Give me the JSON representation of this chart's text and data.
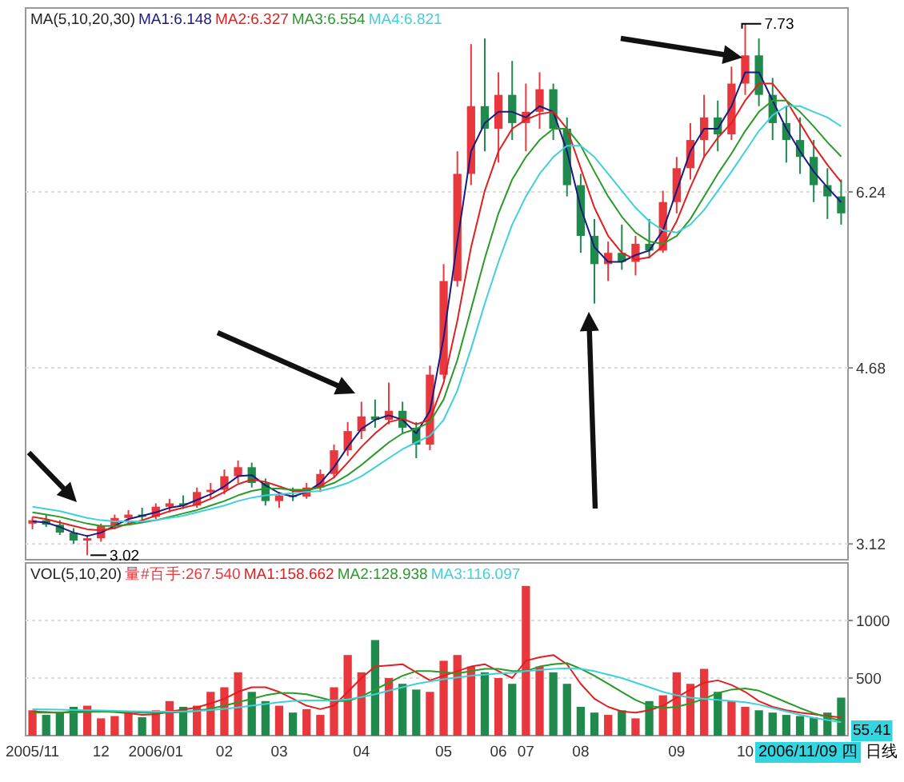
{
  "chart_data": [
    {
      "type": "candlestick",
      "legend_title": "MA(5,10,20,30)",
      "legend": "top left",
      "grid": "y",
      "tick_labels": "y",
      "ylim": [
        2.98,
        7.87
      ],
      "yticks": [
        3.12,
        4.68,
        6.24
      ],
      "categories": [
        null,
        null,
        null,
        null,
        null,
        null,
        null,
        null,
        null,
        null,
        null,
        null,
        null,
        null,
        null,
        null,
        null,
        null,
        null,
        null,
        null,
        null,
        null,
        null,
        null,
        null,
        null,
        null,
        null,
        null,
        null,
        null,
        null,
        null,
        null,
        null,
        null,
        null,
        null,
        null,
        null,
        null,
        null,
        null,
        null,
        null,
        null,
        null,
        null,
        null,
        null,
        null,
        null,
        null,
        null,
        null,
        null,
        null,
        null,
        null
      ],
      "ohlc": [
        [
          3.3,
          3.36,
          3.25,
          3.33
        ],
        [
          3.33,
          3.38,
          3.27,
          3.29
        ],
        [
          3.29,
          3.33,
          3.2,
          3.22
        ],
        [
          3.22,
          3.26,
          3.12,
          3.15
        ],
        [
          3.15,
          3.2,
          3.02,
          3.17
        ],
        [
          3.17,
          3.3,
          3.14,
          3.28
        ],
        [
          3.28,
          3.38,
          3.25,
          3.35
        ],
        [
          3.35,
          3.42,
          3.3,
          3.38
        ],
        [
          3.38,
          3.44,
          3.33,
          3.36
        ],
        [
          3.36,
          3.48,
          3.34,
          3.45
        ],
        [
          3.45,
          3.52,
          3.4,
          3.48
        ],
        [
          3.48,
          3.55,
          3.43,
          3.46
        ],
        [
          3.46,
          3.62,
          3.44,
          3.58
        ],
        [
          3.58,
          3.66,
          3.52,
          3.6
        ],
        [
          3.6,
          3.78,
          3.56,
          3.72
        ],
        [
          3.72,
          3.86,
          3.66,
          3.8
        ],
        [
          3.8,
          3.84,
          3.62,
          3.66
        ],
        [
          3.66,
          3.7,
          3.46,
          3.5
        ],
        [
          3.5,
          3.58,
          3.44,
          3.55
        ],
        [
          3.55,
          3.62,
          3.5,
          3.54
        ],
        [
          3.54,
          3.66,
          3.52,
          3.62
        ],
        [
          3.62,
          3.78,
          3.58,
          3.74
        ],
        [
          3.74,
          4.0,
          3.7,
          3.95
        ],
        [
          3.95,
          4.2,
          3.9,
          4.12
        ],
        [
          4.12,
          4.38,
          4.05,
          4.25
        ],
        [
          4.25,
          4.4,
          4.15,
          4.22
        ],
        [
          4.22,
          4.55,
          4.18,
          4.3
        ],
        [
          4.3,
          4.38,
          4.1,
          4.15
        ],
        [
          4.15,
          4.2,
          3.88,
          4.0
        ],
        [
          4.0,
          4.7,
          3.95,
          4.62
        ],
        [
          4.62,
          5.6,
          4.58,
          5.45
        ],
        [
          5.45,
          6.6,
          5.4,
          6.4
        ],
        [
          6.4,
          7.55,
          6.3,
          7.0
        ],
        [
          7.0,
          7.6,
          6.6,
          6.8
        ],
        [
          6.8,
          7.3,
          6.5,
          7.1
        ],
        [
          7.1,
          7.4,
          6.7,
          6.85
        ],
        [
          6.85,
          7.2,
          6.6,
          6.95
        ],
        [
          6.95,
          7.3,
          6.8,
          7.15
        ],
        [
          7.15,
          7.2,
          6.7,
          6.8
        ],
        [
          6.8,
          6.9,
          6.2,
          6.3
        ],
        [
          6.3,
          6.4,
          5.7,
          5.85
        ],
        [
          5.85,
          6.0,
          5.25,
          5.6
        ],
        [
          5.6,
          5.8,
          5.45,
          5.7
        ],
        [
          5.7,
          5.95,
          5.55,
          5.62
        ],
        [
          5.62,
          5.85,
          5.5,
          5.78
        ],
        [
          5.78,
          6.0,
          5.65,
          5.72
        ],
        [
          5.72,
          6.25,
          5.7,
          6.15
        ],
        [
          6.15,
          6.55,
          6.05,
          6.45
        ],
        [
          6.45,
          6.85,
          6.35,
          6.7
        ],
        [
          6.7,
          7.1,
          6.55,
          6.9
        ],
        [
          6.9,
          7.05,
          6.6,
          6.75
        ],
        [
          6.75,
          7.35,
          6.7,
          7.2
        ],
        [
          7.2,
          7.73,
          7.1,
          7.45
        ],
        [
          7.45,
          7.6,
          7.0,
          7.1
        ],
        [
          7.1,
          7.25,
          6.7,
          6.85
        ],
        [
          6.85,
          7.0,
          6.5,
          6.7
        ],
        [
          6.7,
          6.9,
          6.4,
          6.55
        ],
        [
          6.55,
          6.7,
          6.15,
          6.3
        ],
        [
          6.3,
          6.45,
          6.0,
          6.2
        ],
        [
          6.2,
          6.35,
          5.95,
          6.05
        ]
      ],
      "colors": [
        "#e8383d",
        "#1f8a4c",
        "#1f8a4c",
        "#1f8a4c",
        "#e8383d",
        "#e8383d",
        "#e8383d",
        "#e8383d",
        "#1f8a4c",
        "#e8383d",
        "#e8383d",
        "#1f8a4c",
        "#e8383d",
        "#e8383d",
        "#e8383d",
        "#e8383d",
        "#1f8a4c",
        "#1f8a4c",
        "#e8383d",
        "#1f8a4c",
        "#e8383d",
        "#e8383d",
        "#e8383d",
        "#e8383d",
        "#e8383d",
        "#1f8a4c",
        "#e8383d",
        "#1f8a4c",
        "#1f8a4c",
        "#e8383d",
        "#e8383d",
        "#e8383d",
        "#e8383d",
        "#1f8a4c",
        "#e8383d",
        "#1f8a4c",
        "#e8383d",
        "#e8383d",
        "#1f8a4c",
        "#1f8a4c",
        "#1f8a4c",
        "#1f8a4c",
        "#e8383d",
        "#1f8a4c",
        "#e8383d",
        "#1f8a4c",
        "#e8383d",
        "#e8383d",
        "#e8383d",
        "#e8383d",
        "#1f8a4c",
        "#e8383d",
        "#e8383d",
        "#1f8a4c",
        "#1f8a4c",
        "#1f8a4c",
        "#1f8a4c",
        "#1f8a4c",
        "#1f8a4c",
        "#1f8a4c"
      ],
      "series": [
        {
          "type": "line",
          "name": "MA1:6.148",
          "color": "#1a1a80",
          "values": [
            3.32,
            3.31,
            3.27,
            3.22,
            3.19,
            3.22,
            3.28,
            3.34,
            3.37,
            3.4,
            3.44,
            3.46,
            3.51,
            3.56,
            3.63,
            3.72,
            3.73,
            3.64,
            3.57,
            3.54,
            3.58,
            3.66,
            3.8,
            3.98,
            4.14,
            4.22,
            4.26,
            4.22,
            4.1,
            4.3,
            4.95,
            5.8,
            6.6,
            6.85,
            6.95,
            6.95,
            6.9,
            7.0,
            6.95,
            6.6,
            6.1,
            5.75,
            5.62,
            5.62,
            5.68,
            5.72,
            5.9,
            6.25,
            6.6,
            6.8,
            6.8,
            7.0,
            7.3,
            7.3,
            7.05,
            6.8,
            6.6,
            6.42,
            6.28,
            6.148
          ]
        },
        {
          "type": "line",
          "name": "MA2:6.327",
          "color": "#e02020",
          "values": [
            3.36,
            3.34,
            3.31,
            3.28,
            3.25,
            3.24,
            3.26,
            3.3,
            3.33,
            3.37,
            3.41,
            3.44,
            3.47,
            3.52,
            3.58,
            3.65,
            3.69,
            3.67,
            3.63,
            3.59,
            3.59,
            3.63,
            3.71,
            3.84,
            3.98,
            4.1,
            4.2,
            4.23,
            4.18,
            4.22,
            4.55,
            5.1,
            5.75,
            6.25,
            6.6,
            6.8,
            6.88,
            6.93,
            6.95,
            6.8,
            6.45,
            6.1,
            5.85,
            5.7,
            5.64,
            5.66,
            5.76,
            5.98,
            6.28,
            6.55,
            6.72,
            6.85,
            7.05,
            7.2,
            7.2,
            7.05,
            6.85,
            6.65,
            6.48,
            6.327
          ]
        },
        {
          "type": "line",
          "name": "MA3:6.554",
          "color": "#2a9a2a",
          "values": [
            3.4,
            3.38,
            3.36,
            3.33,
            3.3,
            3.28,
            3.28,
            3.29,
            3.31,
            3.33,
            3.36,
            3.39,
            3.42,
            3.46,
            3.5,
            3.55,
            3.59,
            3.61,
            3.61,
            3.6,
            3.6,
            3.62,
            3.66,
            3.73,
            3.82,
            3.92,
            4.02,
            4.1,
            4.14,
            4.2,
            4.4,
            4.75,
            5.2,
            5.65,
            6.05,
            6.35,
            6.55,
            6.7,
            6.8,
            6.8,
            6.65,
            6.42,
            6.2,
            6.02,
            5.88,
            5.8,
            5.78,
            5.85,
            6.0,
            6.2,
            6.4,
            6.58,
            6.78,
            6.95,
            7.05,
            7.05,
            6.95,
            6.82,
            6.68,
            6.554
          ]
        },
        {
          "type": "line",
          "name": "MA4:6.821",
          "color": "#40d0d8",
          "values": [
            3.45,
            3.43,
            3.41,
            3.38,
            3.35,
            3.33,
            3.32,
            3.32,
            3.32,
            3.33,
            3.35,
            3.37,
            3.4,
            3.43,
            3.46,
            3.5,
            3.53,
            3.55,
            3.56,
            3.57,
            3.58,
            3.59,
            3.62,
            3.66,
            3.72,
            3.8,
            3.88,
            3.96,
            4.02,
            4.08,
            4.22,
            4.48,
            4.85,
            5.25,
            5.62,
            5.95,
            6.2,
            6.4,
            6.55,
            6.65,
            6.65,
            6.55,
            6.4,
            6.25,
            6.1,
            5.98,
            5.9,
            5.88,
            5.95,
            6.08,
            6.25,
            6.42,
            6.6,
            6.78,
            6.92,
            7.0,
            7.0,
            6.95,
            6.9,
            6.821
          ]
        }
      ],
      "annotations": [
        "7.73",
        "3.02"
      ]
    },
    {
      "type": "bar",
      "legend_title": "VOL(5,10,20)",
      "legend": "top left",
      "grid": "y",
      "ylim": [
        0,
        1500
      ],
      "yticks": [
        500,
        1000
      ],
      "categories": [
        "2005/11",
        null,
        null,
        null,
        null,
        "12",
        null,
        null,
        null,
        "2006/01",
        null,
        null,
        null,
        null,
        "02",
        null,
        null,
        null,
        "03",
        null,
        null,
        null,
        null,
        null,
        "04",
        null,
        null,
        null,
        null,
        null,
        "05",
        null,
        null,
        null,
        "06",
        null,
        "07",
        null,
        null,
        null,
        "08",
        null,
        null,
        null,
        null,
        null,
        null,
        "09",
        null,
        null,
        null,
        null,
        "10",
        null,
        null,
        null,
        null,
        null,
        null,
        null
      ],
      "series": [
        {
          "name": "量#百手:267.540",
          "color": "#e8383d",
          "values": [
            220,
            180,
            200,
            250,
            260,
            150,
            170,
            200,
            160,
            220,
            300,
            250,
            260,
            380,
            420,
            550,
            380,
            300,
            260,
            200,
            230,
            180,
            420,
            700,
            550,
            830,
            500,
            450,
            400,
            380,
            650,
            700,
            600,
            550,
            500,
            450,
            1300,
            600,
            550,
            450,
            250,
            200,
            180,
            220,
            150,
            300,
            350,
            550,
            450,
            580,
            380,
            300,
            250,
            220,
            200,
            180,
            170,
            160,
            200,
            330
          ],
          "colors": [
            "#e8383d",
            "#1f8a4c",
            "#1f8a4c",
            "#1f8a4c",
            "#e8383d",
            "#e8383d",
            "#e8383d",
            "#e8383d",
            "#1f8a4c",
            "#e8383d",
            "#e8383d",
            "#1f8a4c",
            "#e8383d",
            "#e8383d",
            "#e8383d",
            "#e8383d",
            "#1f8a4c",
            "#1f8a4c",
            "#e8383d",
            "#1f8a4c",
            "#e8383d",
            "#e8383d",
            "#e8383d",
            "#e8383d",
            "#e8383d",
            "#1f8a4c",
            "#e8383d",
            "#1f8a4c",
            "#1f8a4c",
            "#e8383d",
            "#e8383d",
            "#e8383d",
            "#e8383d",
            "#1f8a4c",
            "#e8383d",
            "#1f8a4c",
            "#e8383d",
            "#e8383d",
            "#1f8a4c",
            "#1f8a4c",
            "#1f8a4c",
            "#1f8a4c",
            "#e8383d",
            "#1f8a4c",
            "#e8383d",
            "#1f8a4c",
            "#e8383d",
            "#e8383d",
            "#e8383d",
            "#e8383d",
            "#1f8a4c",
            "#e8383d",
            "#e8383d",
            "#1f8a4c",
            "#1f8a4c",
            "#1f8a4c",
            "#1f8a4c",
            "#1f8a4c",
            "#1f8a4c",
            "#1f8a4c"
          ]
        },
        {
          "type": "line",
          "name": "MA1:158.662",
          "color": "#e02020",
          "values": [
            210,
            205,
            200,
            210,
            215,
            210,
            205,
            195,
            180,
            185,
            210,
            225,
            245,
            280,
            320,
            380,
            420,
            420,
            380,
            320,
            260,
            230,
            260,
            380,
            500,
            600,
            610,
            620,
            550,
            480,
            520,
            560,
            600,
            620,
            560,
            500,
            650,
            680,
            700,
            620,
            450,
            320,
            250,
            210,
            200,
            220,
            260,
            330,
            400,
            460,
            480,
            440,
            380,
            300,
            250,
            220,
            200,
            185,
            170,
            158.662
          ]
        },
        {
          "type": "line",
          "name": "MA2:128.938",
          "color": "#2a9a2a",
          "values": [
            200,
            200,
            200,
            202,
            205,
            208,
            208,
            205,
            200,
            198,
            200,
            205,
            215,
            235,
            260,
            290,
            320,
            350,
            370,
            370,
            360,
            330,
            300,
            300,
            340,
            400,
            460,
            520,
            560,
            560,
            550,
            540,
            560,
            580,
            580,
            560,
            560,
            600,
            620,
            630,
            580,
            520,
            450,
            380,
            310,
            260,
            240,
            250,
            280,
            320,
            370,
            400,
            410,
            390,
            340,
            290,
            240,
            195,
            160,
            128.938
          ]
        },
        {
          "type": "line",
          "name": "MA3:116.097",
          "color": "#40d0d8",
          "values": [
            230,
            228,
            225,
            222,
            220,
            218,
            215,
            212,
            210,
            208,
            208,
            210,
            214,
            222,
            232,
            245,
            260,
            275,
            290,
            300,
            305,
            305,
            305,
            315,
            335,
            360,
            390,
            420,
            450,
            470,
            490,
            505,
            520,
            530,
            540,
            545,
            560,
            570,
            580,
            585,
            580,
            560,
            530,
            500,
            460,
            420,
            380,
            350,
            330,
            320,
            310,
            300,
            290,
            270,
            240,
            210,
            180,
            155,
            135,
            116.097
          ]
        }
      ],
      "annotations": [
        "2006/11/09 四",
        "日线",
        {
          "text": "55.41",
          "y": 55.41
        }
      ]
    }
  ]
}
